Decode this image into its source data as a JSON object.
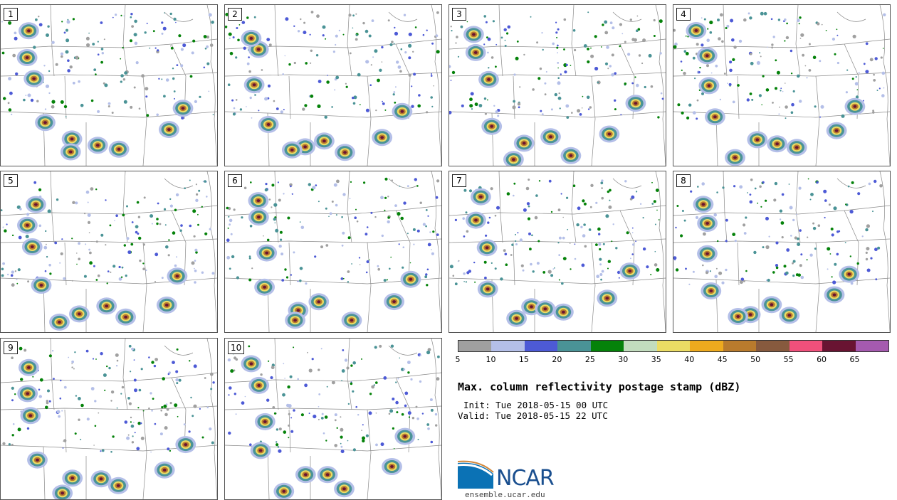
{
  "panels": [
    {
      "label": "1"
    },
    {
      "label": "2"
    },
    {
      "label": "3"
    },
    {
      "label": "4"
    },
    {
      "label": "5"
    },
    {
      "label": "6"
    },
    {
      "label": "7"
    },
    {
      "label": "8"
    },
    {
      "label": "9"
    },
    {
      "label": "10"
    }
  ],
  "colorbar": {
    "colors": [
      "#a0a0a0",
      "#b4bfe8",
      "#4d5ad6",
      "#4a9396",
      "#05820a",
      "#c2dcbe",
      "#ebdc64",
      "#eeaa1e",
      "#b97b2d",
      "#875a3e",
      "#f0507b",
      "#691432",
      "#a55aaf"
    ],
    "ticks": [
      "5",
      "10",
      "15",
      "20",
      "25",
      "30",
      "35",
      "40",
      "45",
      "50",
      "55",
      "60",
      "65"
    ]
  },
  "title": "Max. column reflectivity postage stamp (dBZ)",
  "init": "Init: Tue 2018-05-15 00 UTC",
  "valid": "Valid: Tue 2018-05-15 22 UTC",
  "logo": {
    "wordmark": "NCAR",
    "url": "ensemble.ucar.edu",
    "primary": "#0b72b5",
    "accent": "#d3873a"
  }
}
